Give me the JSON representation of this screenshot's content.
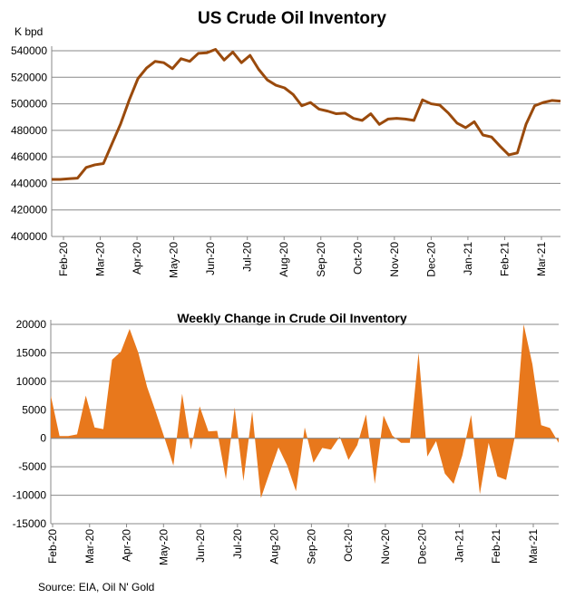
{
  "source": "Source: EIA, Oil N' Gold",
  "chart_data": [
    {
      "type": "line",
      "title": "US Crude Oil Inventory",
      "ylabel": "K bpd",
      "ylim": [
        400000,
        540000
      ],
      "yticks": [
        "400000",
        "420000",
        "440000",
        "460000",
        "480000",
        "500000",
        "520000",
        "540000"
      ],
      "xticks": [
        "Feb-20",
        "Mar-20",
        "Apr-20",
        "May-20",
        "Jun-20",
        "Jul-20",
        "Aug-20",
        "Sep-20",
        "Oct-20",
        "Nov-20",
        "Dec-20",
        "Jan-21",
        "Feb-21",
        "Mar-21"
      ],
      "grid": true,
      "color": "#9a4a0c",
      "values": [
        443000,
        443000,
        443500,
        444000,
        452000,
        454000,
        455000,
        470000,
        485000,
        503000,
        519000,
        527000,
        532000,
        531000,
        526500,
        534000,
        532000,
        538000,
        538500,
        541000,
        533000,
        539000,
        531000,
        536500,
        526000,
        518000,
        514000,
        512000,
        507000,
        498500,
        501000,
        496000,
        494500,
        492500,
        493000,
        489000,
        487500,
        492500,
        484500,
        488500,
        489000,
        488500,
        487500,
        503000,
        500000,
        499000,
        493000,
        485500,
        482000,
        486500,
        476500,
        475000,
        468000,
        461500,
        463000,
        484500,
        498500,
        501000,
        502500,
        502000
      ]
    },
    {
      "type": "area",
      "title": "Weekly Change in Crude Oil Inventory",
      "ylim": [
        -15000,
        20000
      ],
      "yticks": [
        "-15000",
        "-10000",
        "-5000",
        "0",
        "5000",
        "10000",
        "15000",
        "20000"
      ],
      "xticks": [
        "Feb-20",
        "Mar-20",
        "Apr-20",
        "May-20",
        "Jun-20",
        "Jul-20",
        "Aug-20",
        "Sep-20",
        "Oct-20",
        "Nov-20",
        "Dec-20",
        "Jan-21",
        "Feb-21",
        "Mar-21"
      ],
      "grid": true,
      "color": "#e8781c",
      "values": [
        7500,
        400,
        400,
        700,
        7500,
        1900,
        1600,
        13800,
        15200,
        19200,
        15000,
        9000,
        4600,
        0,
        -4800,
        7800,
        -2000,
        5600,
        1200,
        1300,
        -7200,
        5400,
        -7500,
        4700,
        -10500,
        -6000,
        -1600,
        -4800,
        -9300,
        1900,
        -4300,
        -1700,
        -2000,
        300,
        -3800,
        -1200,
        4200,
        -8000,
        4000,
        500,
        -800,
        -800,
        15000,
        -3200,
        -500,
        -6200,
        -8000,
        -3000,
        4100,
        -9800,
        -800,
        -6700,
        -7300,
        300,
        20000,
        13000,
        2300,
        1800,
        -800
      ]
    }
  ]
}
